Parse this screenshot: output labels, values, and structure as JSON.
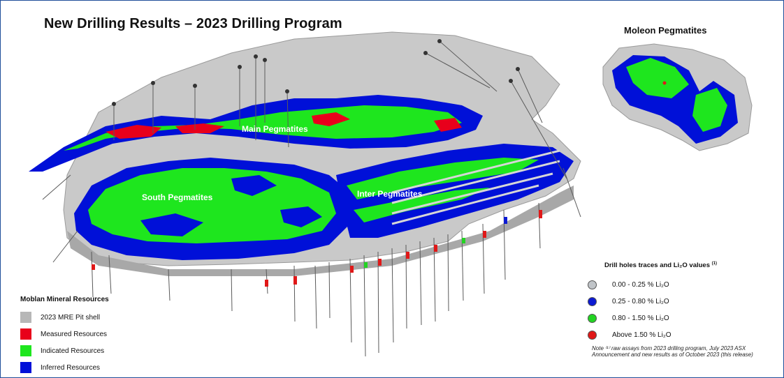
{
  "title": "New Drilling Results – 2023 Drilling Program",
  "inset_title": "Moleon Pegmatites",
  "zones": {
    "main": "Main Pegmatites",
    "south": "South Pegmatites",
    "inter": "Inter Pegmatites"
  },
  "legend": {
    "title": "Moblan Mineral Resources",
    "items": [
      {
        "label": "2023 MRE Pit shell",
        "color": "#b7b7b7"
      },
      {
        "label": "Measured Resources",
        "color": "#e8001b"
      },
      {
        "label": "Indicated Resources",
        "color": "#1ee61e"
      },
      {
        "label": "Inferred Resources",
        "color": "#0010d8"
      }
    ]
  },
  "drill_legend": {
    "title": "Drill holes traces and Li₂O values",
    "title_sup": "(1)",
    "items": [
      {
        "label": "0.00 - 0.25 % Li₂O",
        "color": "#c0c4c8"
      },
      {
        "label": "0.25 - 0.80 % Li₂O",
        "color": "#0c1ad2"
      },
      {
        "label": "0.80 - 1.50 % Li₂O",
        "color": "#22d422"
      },
      {
        "label": "Above 1.50 % Li₂O",
        "color": "#e01818"
      }
    ]
  },
  "note": "Note ⁽¹⁾ raw assays from 2023 drilling program, July 2023 ASX Announcement and new results as of October 2023 (this release)"
}
